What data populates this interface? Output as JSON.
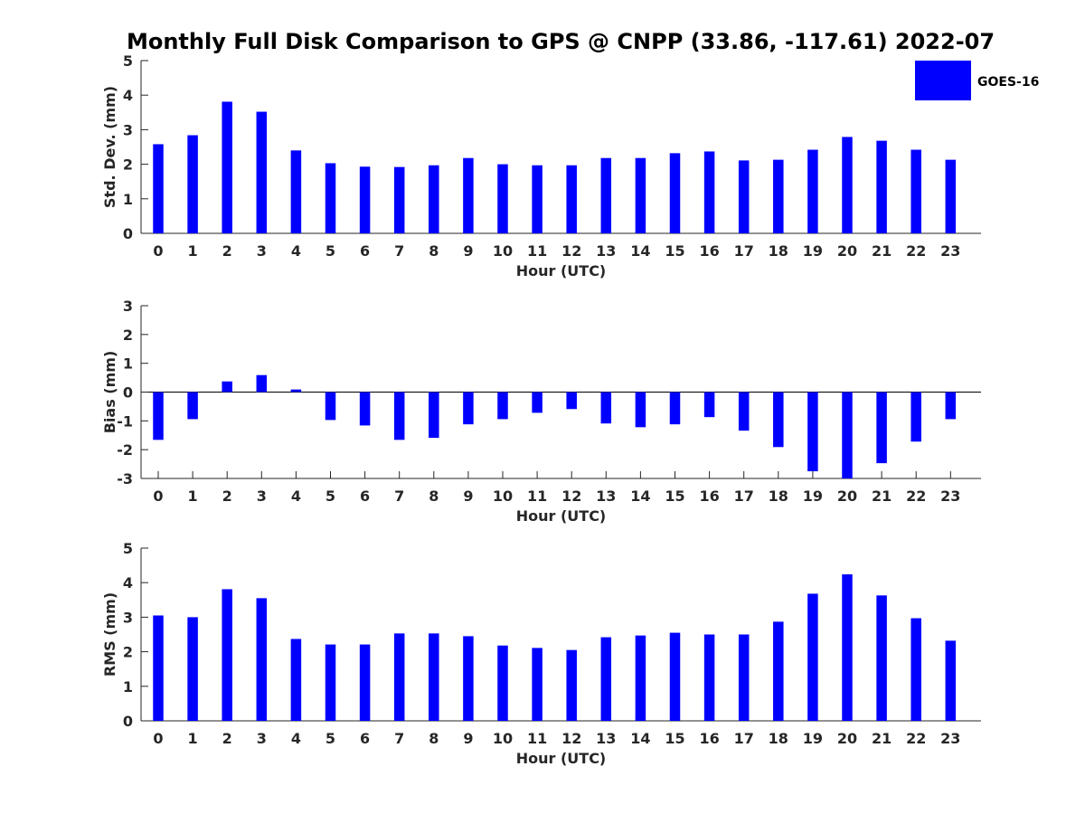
{
  "chart_data": {
    "type": "bar",
    "title": "Monthly Full Disk Comparison to GPS @ CNPP (33.86, -117.61) 2022-07",
    "legend": {
      "label": "GOES-16",
      "color": "#0000ff",
      "placement": "top-right"
    },
    "bar_color": "#0000ff",
    "grid": false,
    "categories": [
      "0",
      "1",
      "2",
      "3",
      "4",
      "5",
      "6",
      "7",
      "8",
      "9",
      "10",
      "11",
      "12",
      "13",
      "14",
      "15",
      "16",
      "17",
      "18",
      "19",
      "20",
      "21",
      "22",
      "23"
    ],
    "panels": [
      {
        "ylabel": "Std. Dev. (mm)",
        "xlabel": "Hour (UTC)",
        "ylim": [
          0,
          5
        ],
        "yticks": [
          "0",
          "1",
          "2",
          "3",
          "4",
          "5"
        ],
        "values": [
          2.58,
          2.84,
          3.81,
          3.52,
          2.4,
          2.03,
          1.93,
          1.92,
          1.97,
          2.18,
          2.0,
          1.97,
          1.97,
          2.18,
          2.18,
          2.32,
          2.37,
          2.11,
          2.13,
          2.42,
          2.79,
          2.68,
          2.42,
          2.13
        ]
      },
      {
        "ylabel": "Bias (mm)",
        "xlabel": "Hour (UTC)",
        "ylim": [
          -3,
          3
        ],
        "yticks": [
          "-3",
          "-2",
          "-1",
          "0",
          "1",
          "2",
          "3"
        ],
        "values": [
          -1.66,
          -0.94,
          0.37,
          0.59,
          0.09,
          -0.97,
          -1.16,
          -1.66,
          -1.59,
          -1.12,
          -0.94,
          -0.72,
          -0.59,
          -1.09,
          -1.22,
          -1.12,
          -0.87,
          -1.34,
          -1.91,
          -2.75,
          -3.0,
          -2.47,
          -1.72,
          -0.94
        ]
      },
      {
        "ylabel": "RMS (mm)",
        "xlabel": "Hour (UTC)",
        "ylim": [
          0,
          5
        ],
        "yticks": [
          "0",
          "1",
          "2",
          "3",
          "4",
          "5"
        ],
        "values": [
          3.05,
          3.0,
          3.81,
          3.55,
          2.37,
          2.21,
          2.21,
          2.53,
          2.53,
          2.45,
          2.18,
          2.11,
          2.05,
          2.42,
          2.47,
          2.55,
          2.5,
          2.5,
          2.87,
          3.68,
          4.24,
          3.63,
          2.97,
          2.32
        ]
      }
    ]
  }
}
